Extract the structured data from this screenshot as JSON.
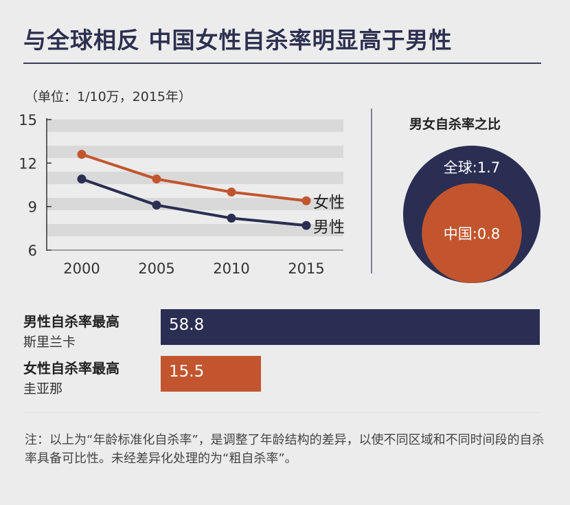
{
  "header": {
    "title": "与全球相反  中国女性自杀率明显高于男性",
    "unit": "（单位：1/10万，2015年）"
  },
  "colors": {
    "navy": "#2a2e52",
    "orange": "#c2552e",
    "grid_band": "#d9d9d9"
  },
  "chart_data": [
    {
      "type": "line",
      "categories": [
        "2000",
        "2005",
        "2010",
        "2015"
      ],
      "series": [
        {
          "name": "女性",
          "values": [
            12.6,
            10.9,
            10.0,
            9.4
          ],
          "color": "#c2552e"
        },
        {
          "name": "男性",
          "values": [
            10.9,
            9.1,
            8.2,
            7.7
          ],
          "color": "#2a2e52"
        }
      ],
      "yticks": [
        "15",
        "12",
        "9",
        "6"
      ],
      "ylim": [
        6,
        15
      ],
      "grid": true
    },
    {
      "type": "area",
      "title": "男女自杀率之比",
      "items": [
        {
          "label": "全球:1.7",
          "value": 1.7,
          "color": "#2a2e52"
        },
        {
          "label": "中国:0.8",
          "value": 0.8,
          "color": "#c2552e"
        }
      ]
    },
    {
      "type": "bar",
      "categories": [
        "男性自杀率最高 斯里兰卡",
        "女性自杀率最高 圭亚那"
      ],
      "values": [
        58.8,
        15.5
      ],
      "max": 58.8
    }
  ],
  "bars": [
    {
      "line1": "男性自杀率最高",
      "line2": "斯里兰卡",
      "value_label": "58.8",
      "value": 58.8,
      "color": "#2a2e52"
    },
    {
      "line1": "女性自杀率最高",
      "line2": "圭亚那",
      "value_label": "15.5",
      "value": 15.5,
      "color": "#c2552e"
    }
  ],
  "footnote": "注：以上为“年龄标准化自杀率”，是调整了年龄结构的差异，以使不同区域和不同时间段的自杀率具备可比性。未经差异化处理的为“粗自杀率”。"
}
